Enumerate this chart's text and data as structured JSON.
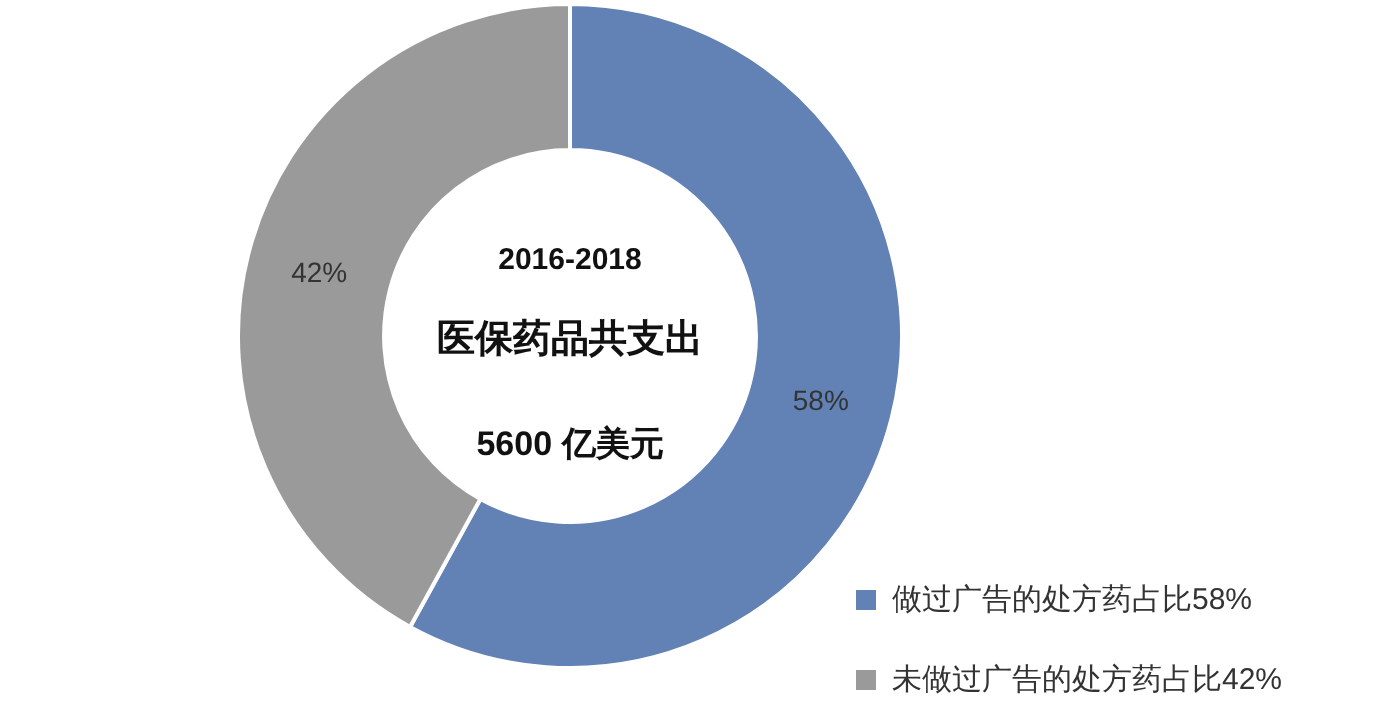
{
  "chart_data": {
    "type": "donut",
    "categories": [
      "做过广告的处方药占比58%",
      "未做过广告的处方药占比42%"
    ],
    "values": [
      58,
      42
    ],
    "colors": [
      "#6281b5",
      "#9a9a9a"
    ],
    "annotations": [
      "2016-2018",
      "医保药品共支出",
      "5600 亿美元"
    ],
    "value_labels": [
      "58%",
      "42%"
    ],
    "legend": "bottom right"
  }
}
